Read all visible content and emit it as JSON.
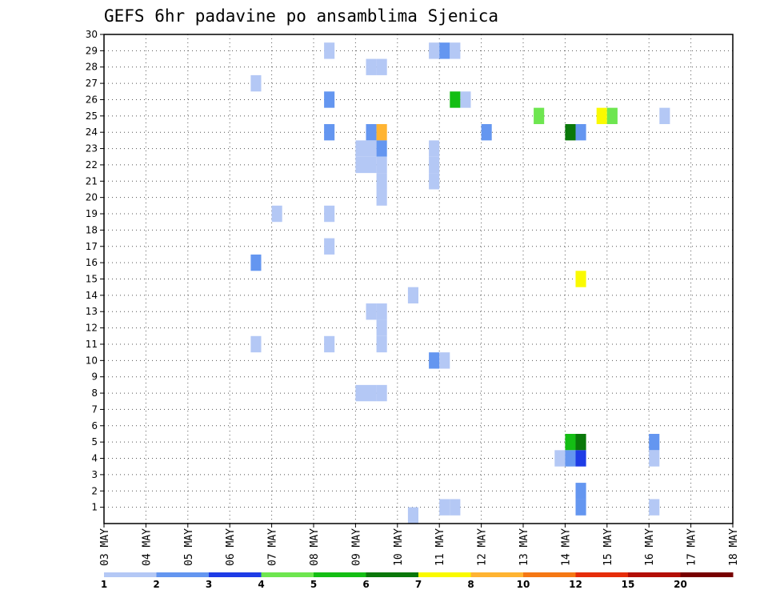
{
  "chart_data": {
    "type": "heatmap",
    "title": "GEFS 6hr padavine po ansamblima Sjenica",
    "xlabel": "",
    "ylabel": "",
    "x_ticks": [
      "03 MAY",
      "04 MAY",
      "05 MAY",
      "06 MAY",
      "07 MAY",
      "08 MAY",
      "09 MAY",
      "10 MAY",
      "11 MAY",
      "12 MAY",
      "13 MAY",
      "14 MAY",
      "15 MAY",
      "16 MAY",
      "17 MAY",
      "18 MAY"
    ],
    "y_ticks": [
      1,
      2,
      3,
      4,
      5,
      6,
      7,
      8,
      9,
      10,
      11,
      12,
      13,
      14,
      15,
      16,
      17,
      18,
      19,
      20,
      21,
      22,
      23,
      24,
      25,
      26,
      27,
      28,
      29,
      30
    ],
    "ensemble_members": 30,
    "steps_per_day": 4,
    "grid": "dotted",
    "legend": {
      "placement": "bottom",
      "labels": [
        "1",
        "2",
        "3",
        "4",
        "5",
        "6",
        "7",
        "8",
        "10",
        "12",
        "15",
        "20"
      ],
      "colors": [
        "#b4c8f5",
        "#6496f0",
        "#1e3ce6",
        "#6ee650",
        "#14be14",
        "#0a780a",
        "#fafa00",
        "#ffb432",
        "#f57814",
        "#e62d0a",
        "#b40f05",
        "#780000"
      ]
    },
    "cells": [
      [
        20.0,
        30,
        0
      ],
      [
        20.5,
        30,
        4
      ],
      [
        20.75,
        30,
        6
      ],
      [
        21.25,
        30,
        0
      ],
      [
        21.5,
        30,
        0
      ],
      [
        21.75,
        30,
        6
      ],
      [
        22.0,
        30,
        5
      ],
      [
        22.25,
        30,
        2
      ],
      [
        22.5,
        30,
        1
      ],
      [
        22.75,
        30,
        7
      ],
      [
        5.25,
        29,
        0
      ],
      [
        7.75,
        29,
        0
      ],
      [
        8.0,
        29,
        1
      ],
      [
        8.25,
        29,
        0
      ],
      [
        21.5,
        29,
        2
      ],
      [
        21.75,
        29,
        7
      ],
      [
        22.25,
        29,
        0
      ],
      [
        22.5,
        29,
        2
      ],
      [
        22.75,
        29,
        4
      ],
      [
        23.25,
        29,
        0
      ],
      [
        23.5,
        29,
        9
      ],
      [
        23.75,
        29,
        1
      ],
      [
        6.25,
        28,
        0
      ],
      [
        6.5,
        28,
        0
      ],
      [
        19.75,
        28,
        1
      ],
      [
        20.5,
        28,
        2
      ],
      [
        20.75,
        28,
        1
      ],
      [
        21.0,
        28,
        1
      ],
      [
        21.5,
        28,
        2
      ],
      [
        21.75,
        28,
        6
      ],
      [
        22.0,
        28,
        1
      ],
      [
        22.5,
        28,
        1
      ],
      [
        22.75,
        28,
        2
      ],
      [
        23.0,
        28,
        5
      ],
      [
        23.25,
        28,
        5
      ],
      [
        23.5,
        28,
        1
      ],
      [
        23.75,
        28,
        1
      ],
      [
        3.5,
        27,
        0
      ],
      [
        21.75,
        27,
        1
      ],
      [
        23.75,
        27,
        5
      ],
      [
        24.0,
        27,
        3
      ],
      [
        5.25,
        26,
        1
      ],
      [
        8.25,
        26,
        4
      ],
      [
        8.5,
        26,
        0
      ],
      [
        19.25,
        26,
        0
      ],
      [
        10.25,
        25,
        3
      ],
      [
        11.75,
        25,
        6
      ],
      [
        12.0,
        25,
        3
      ],
      [
        13.25,
        25,
        0
      ],
      [
        18.75,
        25,
        3
      ],
      [
        19.0,
        25,
        4
      ],
      [
        19.25,
        25,
        11
      ],
      [
        19.5,
        25,
        10
      ],
      [
        19.75,
        25,
        0
      ],
      [
        20.0,
        25,
        0
      ],
      [
        22.75,
        25,
        0
      ],
      [
        5.25,
        24,
        1
      ],
      [
        6.25,
        24,
        1
      ],
      [
        6.5,
        24,
        7
      ],
      [
        9.0,
        24,
        1
      ],
      [
        11.0,
        24,
        5
      ],
      [
        11.25,
        24,
        1
      ],
      [
        21.75,
        24,
        3
      ],
      [
        22.0,
        24,
        2
      ],
      [
        22.75,
        24,
        2
      ],
      [
        23.0,
        24,
        7
      ],
      [
        23.25,
        24,
        4
      ],
      [
        23.5,
        24,
        11
      ],
      [
        23.75,
        24,
        2
      ],
      [
        6.0,
        23,
        0
      ],
      [
        6.25,
        23,
        0
      ],
      [
        6.5,
        23,
        1
      ],
      [
        7.75,
        23,
        0
      ],
      [
        19.25,
        23,
        1
      ],
      [
        19.5,
        23,
        3
      ],
      [
        19.75,
        23,
        0
      ],
      [
        20.0,
        23,
        5
      ],
      [
        6.0,
        22,
        0
      ],
      [
        6.25,
        22,
        0
      ],
      [
        6.5,
        22,
        0
      ],
      [
        7.75,
        22,
        0
      ],
      [
        19.75,
        22,
        0
      ],
      [
        20.0,
        22,
        1
      ],
      [
        20.25,
        22,
        3
      ],
      [
        20.5,
        22,
        3
      ],
      [
        20.75,
        22,
        1
      ],
      [
        23.25,
        22,
        0
      ],
      [
        6.5,
        21,
        0
      ],
      [
        7.75,
        21,
        0
      ],
      [
        19.75,
        21,
        0
      ],
      [
        20.0,
        21,
        0
      ],
      [
        6.5,
        20,
        0
      ],
      [
        21.5,
        20,
        0
      ],
      [
        21.75,
        20,
        2
      ],
      [
        22.0,
        20,
        0
      ],
      [
        22.5,
        20,
        0
      ],
      [
        22.75,
        20,
        1
      ],
      [
        4.0,
        19,
        0
      ],
      [
        5.25,
        19,
        0
      ],
      [
        20.75,
        19,
        1
      ],
      [
        21.75,
        19,
        0
      ],
      [
        22.25,
        19,
        0
      ],
      [
        22.75,
        19,
        1
      ],
      [
        23.0,
        19,
        1
      ],
      [
        23.75,
        19,
        0
      ],
      [
        20.0,
        18,
        0
      ],
      [
        20.25,
        18,
        5
      ],
      [
        23.75,
        18,
        2
      ],
      [
        24.0,
        18,
        1
      ],
      [
        5.25,
        17,
        0
      ],
      [
        3.5,
        16,
        1
      ],
      [
        19.0,
        16,
        5
      ],
      [
        19.25,
        16,
        11
      ],
      [
        19.5,
        16,
        0
      ],
      [
        11.25,
        15,
        6
      ],
      [
        19.25,
        15,
        0
      ],
      [
        19.5,
        15,
        2
      ],
      [
        19.75,
        15,
        0
      ],
      [
        20.0,
        15,
        2
      ],
      [
        7.25,
        14,
        0
      ],
      [
        18.0,
        14,
        0
      ],
      [
        18.25,
        14,
        0
      ],
      [
        6.25,
        13,
        0
      ],
      [
        6.5,
        13,
        0
      ],
      [
        17.75,
        13,
        8
      ],
      [
        18.0,
        13,
        7
      ],
      [
        18.25,
        13,
        2
      ],
      [
        19.25,
        13,
        0
      ],
      [
        19.75,
        13,
        0
      ],
      [
        20.0,
        13,
        0
      ],
      [
        20.25,
        13,
        0
      ],
      [
        21.5,
        13,
        0
      ],
      [
        22.25,
        13,
        0
      ],
      [
        22.5,
        13,
        0
      ],
      [
        22.75,
        13,
        4
      ],
      [
        23.0,
        13,
        8
      ],
      [
        23.25,
        13,
        5
      ],
      [
        23.5,
        13,
        5
      ],
      [
        6.5,
        12,
        0
      ],
      [
        19.25,
        12,
        0
      ],
      [
        19.5,
        12,
        0
      ],
      [
        19.75,
        12,
        2
      ],
      [
        20.0,
        12,
        1
      ],
      [
        20.25,
        12,
        5
      ],
      [
        20.5,
        12,
        2
      ],
      [
        20.75,
        12,
        0
      ],
      [
        22.5,
        12,
        0
      ],
      [
        22.75,
        12,
        1
      ],
      [
        23.25,
        12,
        0
      ],
      [
        24.0,
        12,
        0
      ],
      [
        3.5,
        11,
        0
      ],
      [
        5.25,
        11,
        0
      ],
      [
        6.5,
        11,
        0
      ],
      [
        7.75,
        10,
        1
      ],
      [
        8.0,
        10,
        0
      ],
      [
        21.75,
        10,
        0
      ],
      [
        22.0,
        10,
        0
      ],
      [
        22.75,
        10,
        5
      ],
      [
        23.0,
        10,
        6
      ],
      [
        23.25,
        10,
        3
      ],
      [
        23.5,
        10,
        0
      ],
      [
        23.75,
        10,
        2
      ],
      [
        24.0,
        10,
        7
      ],
      [
        17.5,
        9,
        0
      ],
      [
        17.75,
        9,
        1
      ],
      [
        19.25,
        9,
        0
      ],
      [
        21.75,
        9,
        1
      ],
      [
        22.5,
        9,
        0
      ],
      [
        22.75,
        9,
        2
      ],
      [
        6.0,
        8,
        0
      ],
      [
        6.25,
        8,
        0
      ],
      [
        6.5,
        8,
        0
      ],
      [
        20.0,
        8,
        1
      ],
      [
        20.25,
        8,
        2
      ],
      [
        21.5,
        8,
        3
      ],
      [
        21.75,
        8,
        0
      ],
      [
        23.5,
        8,
        2
      ],
      [
        23.75,
        8,
        4
      ],
      [
        21.75,
        7,
        0
      ],
      [
        22.0,
        7,
        1
      ],
      [
        22.25,
        7,
        2
      ],
      [
        17.75,
        6,
        4
      ],
      [
        18.0,
        6,
        4
      ],
      [
        18.25,
        6,
        6
      ],
      [
        19.75,
        6,
        3
      ],
      [
        20.0,
        6,
        3
      ],
      [
        21.75,
        6,
        4
      ],
      [
        22.5,
        6,
        2
      ],
      [
        22.75,
        6,
        3
      ],
      [
        23.0,
        6,
        3
      ],
      [
        23.25,
        6,
        0
      ],
      [
        11.0,
        5,
        4
      ],
      [
        11.25,
        5,
        5
      ],
      [
        13.0,
        5,
        1
      ],
      [
        19.25,
        5,
        1
      ],
      [
        19.5,
        5,
        1
      ],
      [
        10.75,
        4,
        0
      ],
      [
        11.0,
        4,
        1
      ],
      [
        11.25,
        4,
        2
      ],
      [
        13.0,
        4,
        0
      ],
      [
        17.75,
        4,
        1
      ],
      [
        20.75,
        4,
        3
      ],
      [
        21.0,
        4,
        3
      ],
      [
        21.25,
        4,
        2
      ],
      [
        19.25,
        3,
        0
      ],
      [
        19.5,
        3,
        2
      ],
      [
        20.0,
        3,
        0
      ],
      [
        20.25,
        3,
        7
      ],
      [
        21.5,
        3,
        0
      ],
      [
        21.75,
        3,
        3
      ],
      [
        22.5,
        3,
        0
      ],
      [
        22.75,
        3,
        2
      ],
      [
        23.5,
        3,
        1
      ],
      [
        23.75,
        3,
        0
      ],
      [
        11.25,
        2,
        1
      ],
      [
        17.5,
        2,
        0
      ],
      [
        22.5,
        2,
        0
      ],
      [
        23.75,
        2,
        0
      ],
      [
        8.0,
        1,
        0
      ],
      [
        8.25,
        1,
        0
      ],
      [
        11.25,
        1,
        1
      ],
      [
        13.0,
        1,
        0
      ],
      [
        21.5,
        1,
        1
      ],
      [
        21.75,
        1,
        2
      ],
      [
        23.5,
        1,
        2
      ],
      [
        23.75,
        1,
        0
      ],
      [
        7.25,
        0.5,
        0
      ],
      [
        20.25,
        0.5,
        0
      ],
      [
        20.5,
        0.5,
        1
      ],
      [
        20.75,
        0.5,
        2
      ],
      [
        21.75,
        0.5,
        4
      ],
      [
        22.0,
        0.5,
        0
      ],
      [
        22.25,
        0.5,
        1
      ],
      [
        22.5,
        0.5,
        1
      ],
      [
        22.75,
        0.5,
        1
      ],
      [
        23.0,
        0.5,
        0
      ],
      [
        23.25,
        0.5,
        1
      ],
      [
        23.5,
        0.5,
        0
      ],
      [
        23.75,
        0.5,
        0
      ]
    ]
  }
}
